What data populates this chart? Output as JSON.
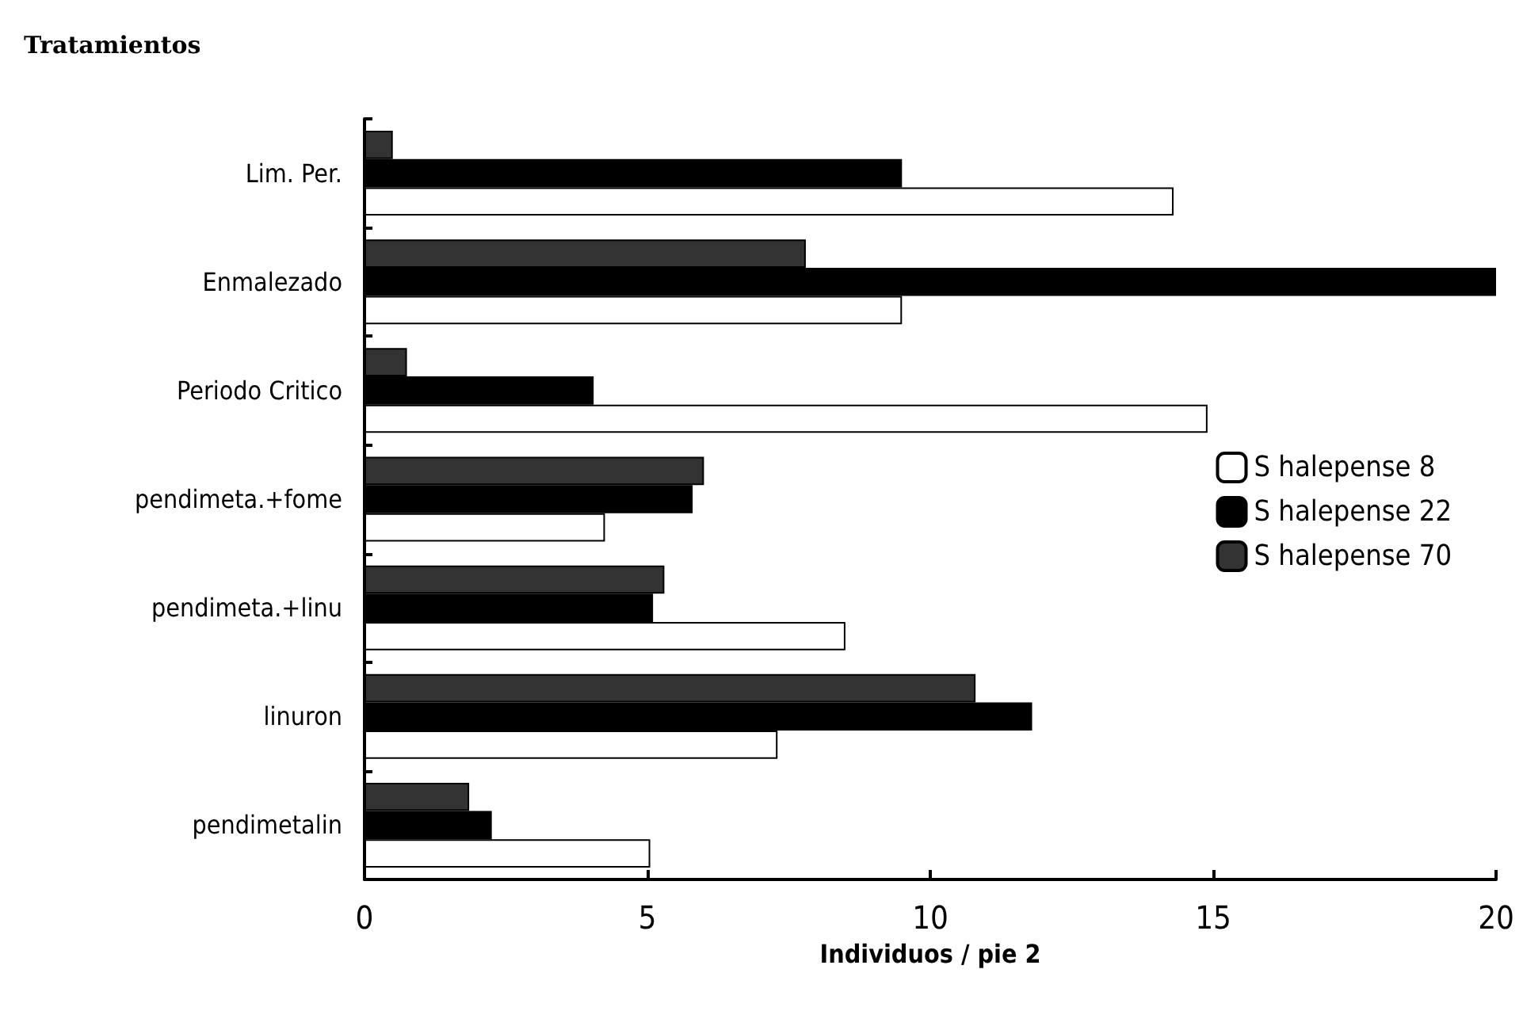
{
  "chart_data": {
    "type": "bar",
    "orientation": "horizontal",
    "title": "Tratamientos",
    "xlabel": "Individuos / pie 2",
    "categories": [
      "Lim. Per.",
      "Enmalezado",
      "Periodo Critico",
      "pendimeta.+fome",
      "pendimeta.+linu",
      "linuron",
      "pendimetalin"
    ],
    "series": [
      {
        "name": "S halepense 8",
        "color": "#ffffff",
        "values": [
          14.3,
          9.5,
          14.9,
          4.25,
          8.5,
          7.3,
          5.05
        ]
      },
      {
        "name": "S halepense 22",
        "color": "#000000",
        "values": [
          9.5,
          20,
          4.05,
          5.8,
          5.1,
          11.8,
          2.25
        ]
      },
      {
        "name": "S halepense 70",
        "color": "#333333",
        "values": [
          0.5,
          7.8,
          0.75,
          6.0,
          5.3,
          10.8,
          1.85
        ]
      }
    ],
    "xlim": [
      0,
      20
    ],
    "xticks": [
      0,
      5,
      10,
      15,
      20
    ],
    "grid": false,
    "legend": "right"
  }
}
